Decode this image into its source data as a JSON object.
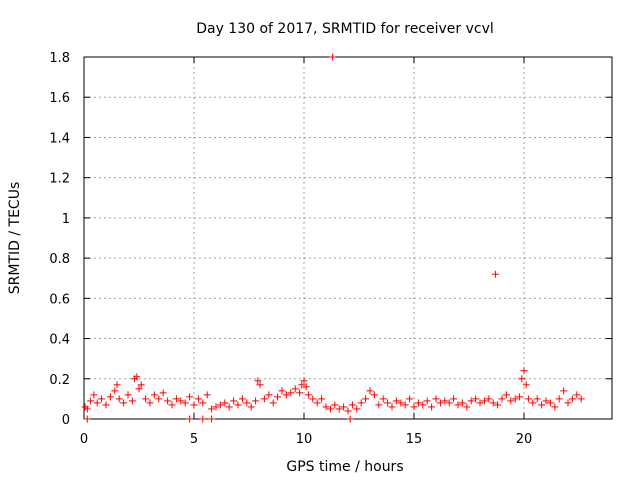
{
  "chart_data": {
    "type": "scatter",
    "title": "Day 130 of 2017, SRMTID for receiver vcvl",
    "xlabel": "GPS time / hours",
    "ylabel": "SRMTID / TECUs",
    "xlim": [
      0,
      24
    ],
    "ylim": [
      0,
      1.8
    ],
    "xticks": [
      0,
      5,
      10,
      15,
      20
    ],
    "xtick_labels": [
      "0",
      "5",
      "10",
      "15",
      "20"
    ],
    "yticks": [
      0,
      0.2,
      0.4,
      0.6,
      0.8,
      1,
      1.2,
      1.4,
      1.6,
      1.8
    ],
    "ytick_labels": [
      "0",
      "0.2",
      "0.4",
      "0.6",
      "0.8",
      "1",
      "1.2",
      "1.4",
      "1.6",
      "1.8"
    ],
    "grid": true,
    "marker": "plus",
    "series": [
      {
        "name": "SRMTID",
        "color": "#ff0000",
        "x": [
          0.05,
          0.15,
          0.3,
          0.45,
          0.6,
          0.8,
          1.0,
          1.2,
          1.4,
          1.5,
          1.6,
          1.8,
          2.0,
          2.2,
          2.3,
          2.4,
          2.5,
          2.6,
          2.8,
          3.0,
          3.2,
          3.4,
          3.6,
          3.8,
          4.0,
          4.2,
          4.4,
          4.6,
          4.8,
          5.0,
          5.2,
          5.4,
          5.6,
          5.8,
          6.0,
          6.2,
          6.4,
          6.6,
          6.8,
          7.0,
          7.2,
          7.4,
          7.6,
          7.8,
          7.9,
          8.0,
          8.2,
          8.4,
          8.6,
          8.8,
          9.0,
          9.2,
          9.4,
          9.6,
          9.8,
          9.9,
          10.0,
          10.1,
          10.2,
          10.4,
          10.6,
          10.8,
          11.0,
          11.2,
          11.3,
          11.4,
          11.6,
          11.8,
          12.0,
          12.2,
          12.4,
          12.6,
          12.8,
          13.0,
          13.2,
          13.4,
          13.6,
          13.8,
          14.0,
          14.2,
          14.4,
          14.6,
          14.8,
          15.0,
          15.2,
          15.4,
          15.6,
          15.8,
          16.0,
          16.2,
          16.4,
          16.6,
          16.8,
          17.0,
          17.2,
          17.4,
          17.6,
          17.8,
          18.0,
          18.2,
          18.4,
          18.6,
          18.7,
          18.8,
          19.0,
          19.2,
          19.4,
          19.6,
          19.8,
          19.9,
          20.0,
          20.1,
          20.2,
          20.4,
          20.6,
          20.8,
          21.0,
          21.2,
          21.4,
          21.6,
          21.8,
          22.0,
          22.2,
          22.4,
          22.6,
          0.15,
          4.8,
          5.4,
          5.8,
          12.1
        ],
        "y": [
          0.06,
          0.05,
          0.09,
          0.12,
          0.08,
          0.1,
          0.07,
          0.11,
          0.14,
          0.17,
          0.1,
          0.08,
          0.12,
          0.09,
          0.2,
          0.21,
          0.15,
          0.17,
          0.1,
          0.08,
          0.12,
          0.1,
          0.13,
          0.09,
          0.07,
          0.1,
          0.09,
          0.08,
          0.11,
          0.07,
          0.1,
          0.08,
          0.12,
          0.05,
          0.06,
          0.07,
          0.08,
          0.06,
          0.09,
          0.07,
          0.1,
          0.08,
          0.06,
          0.09,
          0.19,
          0.17,
          0.1,
          0.12,
          0.08,
          0.11,
          0.14,
          0.12,
          0.13,
          0.15,
          0.13,
          0.17,
          0.19,
          0.16,
          0.12,
          0.1,
          0.08,
          0.1,
          0.06,
          0.05,
          1.8,
          0.07,
          0.05,
          0.06,
          0.04,
          0.07,
          0.05,
          0.08,
          0.1,
          0.14,
          0.12,
          0.07,
          0.1,
          0.08,
          0.06,
          0.09,
          0.08,
          0.07,
          0.1,
          0.06,
          0.08,
          0.07,
          0.09,
          0.06,
          0.1,
          0.08,
          0.09,
          0.08,
          0.1,
          0.07,
          0.08,
          0.06,
          0.09,
          0.1,
          0.08,
          0.09,
          0.1,
          0.08,
          0.72,
          0.07,
          0.1,
          0.12,
          0.09,
          0.1,
          0.11,
          0.2,
          0.24,
          0.17,
          0.1,
          0.08,
          0.1,
          0.07,
          0.09,
          0.08,
          0.06,
          0.1,
          0.14,
          0.08,
          0.1,
          0.12,
          0.1,
          0.0,
          0.0,
          0.0,
          0.0,
          0.0
        ]
      }
    ]
  }
}
